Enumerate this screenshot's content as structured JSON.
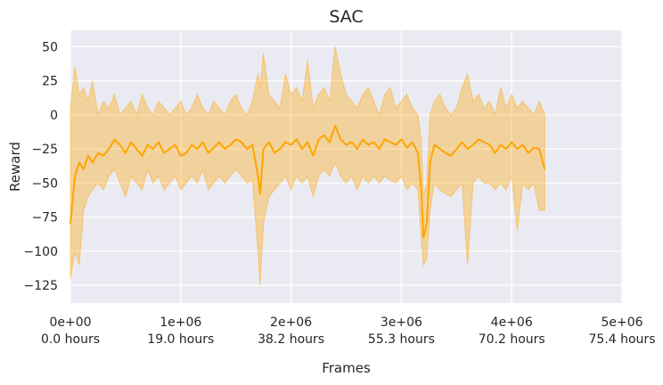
{
  "chart_data": {
    "type": "line",
    "title": "SAC",
    "xlabel": "Frames",
    "ylabel": "Reward",
    "xlim": [
      0,
      5000000
    ],
    "ylim": [
      -138,
      62
    ],
    "grid": true,
    "background_color": "#eaeaf2",
    "series_color": "#ffa500",
    "band_color": "#ffa500",
    "x_ticks": [
      {
        "value": 0,
        "label": "0e+00",
        "sublabel": "0.0 hours"
      },
      {
        "value": 1000000,
        "label": "1e+06",
        "sublabel": "19.0 hours"
      },
      {
        "value": 2000000,
        "label": "2e+06",
        "sublabel": "38.2 hours"
      },
      {
        "value": 3000000,
        "label": "3e+06",
        "sublabel": "55.3 hours"
      },
      {
        "value": 4000000,
        "label": "4e+06",
        "sublabel": "70.2 hours"
      },
      {
        "value": 5000000,
        "label": "5e+06",
        "sublabel": "75.4 hours"
      }
    ],
    "y_ticks": [
      {
        "value": 50,
        "label": "50"
      },
      {
        "value": 25,
        "label": "25"
      },
      {
        "value": 0,
        "label": "0"
      },
      {
        "value": -25,
        "label": "−25"
      },
      {
        "value": -50,
        "label": "−50"
      },
      {
        "value": -75,
        "label": "−75"
      },
      {
        "value": -100,
        "label": "−100"
      },
      {
        "value": -125,
        "label": "−125"
      }
    ],
    "series": [
      {
        "x": [
          0,
          40000,
          80000,
          120000,
          160000,
          200000,
          250000,
          300000,
          350000,
          400000,
          450000,
          500000,
          550000,
          600000,
          650000,
          700000,
          750000,
          800000,
          850000,
          900000,
          950000,
          1000000,
          1050000,
          1100000,
          1150000,
          1200000,
          1250000,
          1300000,
          1350000,
          1400000,
          1450000,
          1500000,
          1550000,
          1600000,
          1650000,
          1700000,
          1720000,
          1750000,
          1800000,
          1850000,
          1900000,
          1950000,
          2000000,
          2050000,
          2100000,
          2150000,
          2200000,
          2250000,
          2300000,
          2350000,
          2400000,
          2450000,
          2500000,
          2550000,
          2600000,
          2650000,
          2700000,
          2750000,
          2800000,
          2850000,
          2900000,
          2950000,
          3000000,
          3050000,
          3100000,
          3150000,
          3180000,
          3200000,
          3230000,
          3260000,
          3300000,
          3350000,
          3400000,
          3450000,
          3500000,
          3550000,
          3600000,
          3650000,
          3700000,
          3750000,
          3800000,
          3850000,
          3900000,
          3950000,
          4000000,
          4050000,
          4100000,
          4150000,
          4200000,
          4250000,
          4300000
        ],
        "y": [
          -80,
          -45,
          -35,
          -40,
          -30,
          -35,
          -28,
          -30,
          -25,
          -18,
          -22,
          -28,
          -20,
          -25,
          -30,
          -22,
          -25,
          -20,
          -28,
          -25,
          -22,
          -30,
          -28,
          -22,
          -25,
          -20,
          -28,
          -24,
          -20,
          -25,
          -22,
          -18,
          -20,
          -25,
          -22,
          -45,
          -58,
          -25,
          -20,
          -28,
          -25,
          -20,
          -22,
          -18,
          -25,
          -20,
          -30,
          -18,
          -15,
          -20,
          -8,
          -18,
          -22,
          -20,
          -25,
          -18,
          -22,
          -20,
          -25,
          -18,
          -20,
          -22,
          -18,
          -24,
          -20,
          -28,
          -55,
          -90,
          -80,
          -35,
          -22,
          -25,
          -28,
          -30,
          -25,
          -20,
          -25,
          -22,
          -18,
          -20,
          -22,
          -28,
          -22,
          -25,
          -20,
          -25,
          -22,
          -28,
          -24,
          -25,
          -40
        ],
        "upper": [
          5,
          35,
          15,
          20,
          10,
          25,
          0,
          10,
          5,
          15,
          0,
          5,
          10,
          0,
          15,
          5,
          0,
          10,
          5,
          0,
          5,
          10,
          0,
          5,
          15,
          5,
          0,
          10,
          5,
          0,
          10,
          15,
          5,
          0,
          10,
          30,
          20,
          45,
          15,
          10,
          5,
          30,
          15,
          20,
          10,
          40,
          5,
          15,
          20,
          10,
          50,
          30,
          15,
          10,
          5,
          15,
          20,
          10,
          0,
          15,
          20,
          5,
          10,
          15,
          5,
          0,
          -20,
          -60,
          -50,
          0,
          10,
          15,
          5,
          0,
          5,
          20,
          30,
          10,
          15,
          5,
          10,
          0,
          20,
          5,
          15,
          5,
          10,
          5,
          0,
          10,
          0
        ],
        "lower": [
          -120,
          -100,
          -110,
          -70,
          -60,
          -55,
          -50,
          -55,
          -45,
          -40,
          -50,
          -60,
          -45,
          -50,
          -55,
          -40,
          -50,
          -45,
          -55,
          -50,
          -45,
          -55,
          -50,
          -45,
          -50,
          -40,
          -55,
          -50,
          -45,
          -50,
          -45,
          -40,
          -45,
          -50,
          -48,
          -100,
          -125,
          -80,
          -60,
          -55,
          -50,
          -45,
          -55,
          -45,
          -50,
          -45,
          -60,
          -45,
          -40,
          -45,
          -35,
          -45,
          -50,
          -45,
          -55,
          -45,
          -50,
          -45,
          -50,
          -45,
          -48,
          -50,
          -45,
          -55,
          -50,
          -55,
          -90,
          -110,
          -105,
          -70,
          -50,
          -55,
          -58,
          -60,
          -55,
          -50,
          -110,
          -50,
          -45,
          -50,
          -50,
          -55,
          -50,
          -55,
          -45,
          -85,
          -50,
          -55,
          -50,
          -70,
          -70
        ]
      }
    ]
  }
}
